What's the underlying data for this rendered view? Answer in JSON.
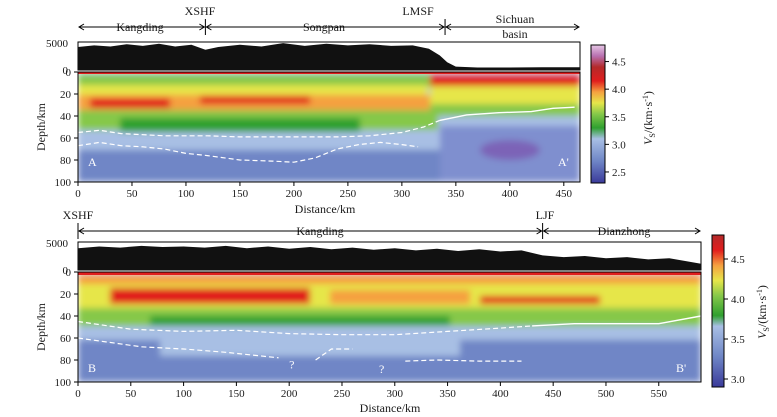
{
  "chart_data": [
    {
      "type": "heatmap",
      "panel": "A-A'",
      "title": "",
      "xlabel": "Distance/km",
      "ylabel": "Depth/km",
      "elevation_label": "",
      "xlim": [
        0,
        465
      ],
      "ylim": [
        0,
        100
      ],
      "x_ticks": [
        0,
        50,
        100,
        150,
        200,
        250,
        300,
        350,
        400,
        450
      ],
      "y_ticks": [
        0,
        20,
        40,
        60,
        80,
        100
      ],
      "elevation_ticks": [
        0,
        5000
      ],
      "tick_labels": {
        "x": [
          "0",
          "50",
          "100",
          "150",
          "200",
          "250",
          "300",
          "350",
          "400",
          "450"
        ],
        "y": [
          "0",
          "20",
          "40",
          "60",
          "80",
          "100"
        ],
        "elevation": [
          "0",
          "5000"
        ]
      },
      "colorbar": {
        "label_main": "V",
        "label_sub": "S",
        "label_unit": "/(km·s",
        "label_exp": "-1",
        "label_close": ")",
        "range": [
          2.3,
          4.8
        ],
        "ticks": [
          2.5,
          3.0,
          3.5,
          4.0,
          4.5
        ],
        "tick_labels": [
          "2.5",
          "3.0",
          "3.5",
          "4.0",
          "4.5"
        ]
      },
      "end_labels": {
        "start": "A",
        "end": "A'"
      },
      "regions": [
        {
          "name": "Kangding",
          "x0": 0,
          "x1": 118
        },
        {
          "name": "Songpan",
          "x0": 118,
          "x1": 340
        },
        {
          "name": "Sichuan basin",
          "name_lines": [
            "Sichuan",
            "basin"
          ],
          "x0": 340,
          "x1": 465
        }
      ],
      "faults": [
        {
          "name": "XSHF",
          "x": 118
        },
        {
          "name": "LMSF",
          "x": 340
        }
      ],
      "moho_dashed": [
        [
          0,
          55
        ],
        [
          20,
          53
        ],
        [
          40,
          56
        ],
        [
          60,
          57
        ],
        [
          80,
          58
        ],
        [
          100,
          58
        ],
        [
          120,
          58
        ],
        [
          150,
          59
        ],
        [
          180,
          59
        ],
        [
          210,
          59
        ],
        [
          240,
          59
        ],
        [
          270,
          58
        ],
        [
          300,
          55
        ],
        [
          320,
          50
        ],
        [
          335,
          44
        ]
      ],
      "moho_dashed_lower": [
        [
          0,
          67
        ],
        [
          20,
          64
        ],
        [
          40,
          67
        ],
        [
          60,
          68
        ],
        [
          80,
          70
        ],
        [
          100,
          74
        ],
        [
          120,
          76
        ],
        [
          150,
          80
        ],
        [
          180,
          81
        ],
        [
          200,
          82
        ],
        [
          220,
          78
        ],
        [
          240,
          70
        ],
        [
          260,
          66
        ],
        [
          280,
          64
        ],
        [
          300,
          66
        ],
        [
          315,
          68
        ]
      ],
      "moho_solid": [
        [
          335,
          44
        ],
        [
          360,
          39
        ],
        [
          390,
          37
        ],
        [
          420,
          36
        ],
        [
          440,
          33
        ],
        [
          460,
          32
        ]
      ],
      "question_marks": [],
      "elevation_m": [
        [
          0,
          4100
        ],
        [
          15,
          4400
        ],
        [
          30,
          4200
        ],
        [
          45,
          4600
        ],
        [
          60,
          4300
        ],
        [
          75,
          4700
        ],
        [
          90,
          4200
        ],
        [
          105,
          4500
        ],
        [
          118,
          3600
        ],
        [
          130,
          4100
        ],
        [
          150,
          4500
        ],
        [
          170,
          4200
        ],
        [
          190,
          4800
        ],
        [
          210,
          4300
        ],
        [
          230,
          4700
        ],
        [
          250,
          4400
        ],
        [
          270,
          4600
        ],
        [
          290,
          4300
        ],
        [
          310,
          4400
        ],
        [
          325,
          3800
        ],
        [
          335,
          2600
        ],
        [
          342,
          1400
        ],
        [
          350,
          600
        ],
        [
          370,
          450
        ],
        [
          400,
          450
        ],
        [
          430,
          480
        ],
        [
          465,
          500
        ]
      ]
    },
    {
      "type": "heatmap",
      "panel": "B-B'",
      "title": "",
      "xlabel": "Distance/km",
      "ylabel": "Depth/km",
      "xlim": [
        0,
        590
      ],
      "ylim": [
        0,
        100
      ],
      "x_ticks": [
        0,
        50,
        100,
        150,
        200,
        250,
        300,
        350,
        400,
        450,
        500,
        550
      ],
      "y_ticks": [
        0,
        20,
        40,
        60,
        80,
        100
      ],
      "elevation_ticks": [
        0,
        5000
      ],
      "tick_labels": {
        "x": [
          "0",
          "50",
          "100",
          "150",
          "200",
          "250",
          "300",
          "350",
          "400",
          "450",
          "500",
          "550"
        ],
        "y": [
          "0",
          "20",
          "40",
          "60",
          "80",
          "100"
        ],
        "elevation": [
          "0",
          "5000"
        ]
      },
      "colorbar": {
        "label_main": "V",
        "label_sub": "S",
        "label_unit": "/(km·s",
        "label_exp": "-1",
        "label_close": ")",
        "range": [
          2.9,
          4.8
        ],
        "ticks": [
          3.0,
          3.5,
          4.0,
          4.5
        ],
        "tick_labels": [
          "3.0",
          "3.5",
          "4.0",
          "4.5"
        ]
      },
      "end_labels": {
        "start": "B",
        "end": "B'"
      },
      "regions": [
        {
          "name": "Kangding",
          "x0": 0,
          "x1": 440
        },
        {
          "name": "Dianzhong",
          "x0": 440,
          "x1": 590
        }
      ],
      "faults": [
        {
          "name": "XSHF",
          "x": 0
        },
        {
          "name": "LJF",
          "x": 440
        }
      ],
      "moho_dashed": [
        [
          0,
          45
        ],
        [
          50,
          52
        ],
        [
          100,
          54
        ],
        [
          150,
          53
        ],
        [
          200,
          56
        ],
        [
          250,
          57
        ],
        [
          300,
          57
        ],
        [
          350,
          54
        ],
        [
          400,
          51
        ],
        [
          430,
          49
        ]
      ],
      "moho_dashed_lower": [
        [
          0,
          60
        ],
        [
          30,
          64
        ],
        [
          60,
          68
        ],
        [
          100,
          70
        ],
        [
          140,
          73
        ],
        [
          180,
          77
        ],
        [
          190,
          78
        ]
      ],
      "moho_dashed_segments": [
        [
          [
            225,
            80
          ],
          [
            240,
            70
          ],
          [
            260,
            70
          ]
        ],
        [
          [
            310,
            81
          ],
          [
            340,
            80
          ],
          [
            380,
            81
          ],
          [
            420,
            81
          ]
        ]
      ],
      "moho_solid": [
        [
          430,
          49
        ],
        [
          470,
          47
        ],
        [
          510,
          47
        ],
        [
          550,
          47
        ],
        [
          590,
          40
        ]
      ],
      "question_marks": [
        {
          "text": "?",
          "x": 200,
          "depth": 84
        },
        {
          "text": "?",
          "x": 285,
          "depth": 88
        }
      ],
      "elevation_m": [
        [
          0,
          3900
        ],
        [
          20,
          4200
        ],
        [
          40,
          4000
        ],
        [
          60,
          4300
        ],
        [
          80,
          4100
        ],
        [
          100,
          4200
        ],
        [
          120,
          4000
        ],
        [
          140,
          4300
        ],
        [
          160,
          3900
        ],
        [
          180,
          4200
        ],
        [
          200,
          3800
        ],
        [
          220,
          4100
        ],
        [
          240,
          3700
        ],
        [
          260,
          4000
        ],
        [
          280,
          3600
        ],
        [
          300,
          3900
        ],
        [
          320,
          3500
        ],
        [
          340,
          3800
        ],
        [
          360,
          3400
        ],
        [
          380,
          3700
        ],
        [
          400,
          3300
        ],
        [
          420,
          3500
        ],
        [
          440,
          2600
        ],
        [
          460,
          2300
        ],
        [
          480,
          2500
        ],
        [
          500,
          2100
        ],
        [
          520,
          2300
        ],
        [
          540,
          1900
        ],
        [
          560,
          2100
        ],
        [
          575,
          1600
        ],
        [
          590,
          1100
        ]
      ]
    }
  ]
}
